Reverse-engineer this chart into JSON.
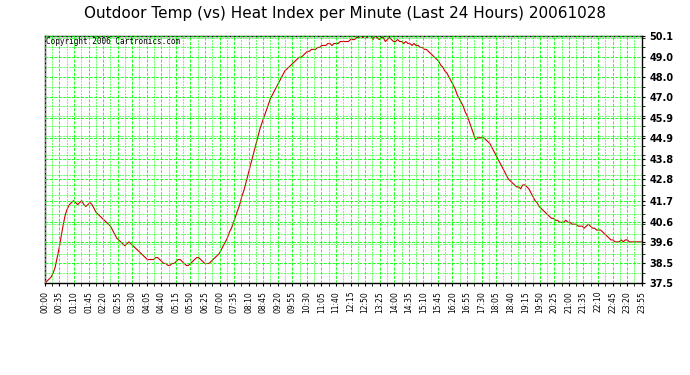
{
  "title": "Outdoor Temp (vs) Heat Index per Minute (Last 24 Hours) 20061028",
  "copyright": "Copyright 2006 Cartronics.com",
  "bg_color": "#ffffff",
  "plot_bg_color": "#ffffff",
  "grid_color": "#00ff00",
  "line_color": "#cc0000",
  "title_fontsize": 11,
  "y_min": 37.5,
  "y_max": 50.1,
  "y_ticks": [
    37.5,
    38.5,
    39.6,
    40.6,
    41.7,
    42.8,
    43.8,
    44.9,
    45.9,
    47.0,
    48.0,
    49.0,
    50.1
  ],
  "x_labels": [
    "00:00",
    "00:35",
    "01:10",
    "01:45",
    "02:20",
    "02:55",
    "03:30",
    "04:05",
    "04:40",
    "05:15",
    "05:50",
    "06:25",
    "07:00",
    "07:35",
    "08:10",
    "08:45",
    "09:20",
    "09:55",
    "10:30",
    "11:05",
    "11:40",
    "12:15",
    "12:50",
    "13:25",
    "14:00",
    "14:35",
    "15:10",
    "15:45",
    "16:20",
    "16:55",
    "17:30",
    "18:05",
    "18:40",
    "19:15",
    "19:50",
    "20:25",
    "21:00",
    "21:35",
    "22:10",
    "22:45",
    "23:20",
    "23:55"
  ],
  "data_y": [
    37.5,
    37.6,
    37.7,
    37.8,
    38.0,
    38.3,
    38.8,
    39.3,
    39.9,
    40.5,
    41.0,
    41.3,
    41.5,
    41.6,
    41.7,
    41.6,
    41.5,
    41.6,
    41.7,
    41.5,
    41.4,
    41.5,
    41.6,
    41.5,
    41.3,
    41.1,
    41.0,
    40.9,
    40.8,
    40.7,
    40.6,
    40.5,
    40.4,
    40.2,
    40.0,
    39.8,
    39.7,
    39.6,
    39.5,
    39.4,
    39.5,
    39.6,
    39.5,
    39.4,
    39.3,
    39.2,
    39.1,
    39.0,
    38.9,
    38.8,
    38.7,
    38.7,
    38.7,
    38.7,
    38.8,
    38.8,
    38.7,
    38.6,
    38.5,
    38.5,
    38.4,
    38.4,
    38.5,
    38.5,
    38.6,
    38.7,
    38.7,
    38.6,
    38.5,
    38.4,
    38.4,
    38.5,
    38.6,
    38.7,
    38.8,
    38.8,
    38.7,
    38.6,
    38.5,
    38.5,
    38.5,
    38.6,
    38.7,
    38.8,
    38.9,
    39.0,
    39.2,
    39.4,
    39.6,
    39.8,
    40.1,
    40.3,
    40.6,
    40.9,
    41.2,
    41.5,
    41.9,
    42.2,
    42.6,
    43.0,
    43.4,
    43.8,
    44.2,
    44.6,
    45.0,
    45.4,
    45.7,
    46.0,
    46.3,
    46.6,
    46.9,
    47.1,
    47.3,
    47.5,
    47.7,
    47.9,
    48.1,
    48.3,
    48.4,
    48.5,
    48.6,
    48.7,
    48.8,
    48.9,
    49.0,
    49.0,
    49.1,
    49.2,
    49.3,
    49.3,
    49.4,
    49.4,
    49.4,
    49.5,
    49.5,
    49.6,
    49.6,
    49.6,
    49.7,
    49.7,
    49.6,
    49.7,
    49.7,
    49.7,
    49.8,
    49.8,
    49.8,
    49.8,
    49.8,
    49.9,
    49.9,
    49.9,
    50.0,
    50.0,
    50.1,
    50.0,
    50.1,
    50.0,
    50.1,
    50.1,
    49.9,
    50.1,
    50.0,
    49.9,
    50.0,
    50.0,
    49.8,
    49.9,
    50.0,
    49.9,
    49.8,
    49.8,
    49.9,
    49.8,
    49.8,
    49.7,
    49.8,
    49.7,
    49.7,
    49.6,
    49.7,
    49.6,
    49.6,
    49.5,
    49.5,
    49.4,
    49.4,
    49.3,
    49.2,
    49.1,
    49.0,
    48.9,
    48.8,
    48.6,
    48.5,
    48.3,
    48.2,
    48.0,
    47.8,
    47.6,
    47.4,
    47.1,
    46.9,
    46.7,
    46.5,
    46.2,
    46.0,
    45.7,
    45.4,
    45.1,
    44.8,
    44.9,
    44.9,
    44.9,
    44.9,
    44.8,
    44.7,
    44.6,
    44.4,
    44.2,
    44.0,
    43.8,
    43.6,
    43.4,
    43.2,
    43.0,
    42.8,
    42.7,
    42.6,
    42.5,
    42.4,
    42.4,
    42.3,
    42.5,
    42.5,
    42.4,
    42.3,
    42.1,
    41.9,
    41.7,
    41.6,
    41.4,
    41.3,
    41.2,
    41.1,
    41.0,
    40.9,
    40.8,
    40.8,
    40.7,
    40.7,
    40.6,
    40.6,
    40.6,
    40.7,
    40.6,
    40.6,
    40.5,
    40.5,
    40.5,
    40.4,
    40.4,
    40.4,
    40.3,
    40.4,
    40.5,
    40.4,
    40.3,
    40.3,
    40.2,
    40.2,
    40.2,
    40.1,
    40.0,
    39.9,
    39.8,
    39.7,
    39.7,
    39.6,
    39.6,
    39.6,
    39.7,
    39.6,
    39.7,
    39.7,
    39.6,
    39.6,
    39.6,
    39.6,
    39.6,
    39.6,
    39.6
  ]
}
